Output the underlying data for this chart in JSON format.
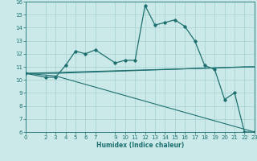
{
  "xlabel": "Humidex (Indice chaleur)",
  "xlim": [
    0,
    23
  ],
  "ylim": [
    6,
    16
  ],
  "xticks": [
    0,
    2,
    3,
    4,
    5,
    6,
    7,
    9,
    10,
    11,
    12,
    13,
    14,
    15,
    16,
    17,
    18,
    19,
    20,
    21,
    22,
    23
  ],
  "yticks": [
    6,
    7,
    8,
    9,
    10,
    11,
    12,
    13,
    14,
    15,
    16
  ],
  "bg_color": "#cce9e9",
  "grid_color": "#aad4d4",
  "line_color": "#1e7070",
  "line1_x": [
    0,
    2,
    3,
    4,
    5,
    6,
    7,
    9,
    10,
    11,
    12,
    13,
    14,
    15,
    16,
    17,
    18,
    19,
    20,
    21,
    22,
    23
  ],
  "line1_y": [
    10.5,
    10.2,
    10.2,
    11.1,
    12.2,
    12.0,
    12.3,
    11.3,
    11.5,
    11.5,
    15.7,
    14.2,
    14.4,
    14.6,
    14.1,
    13.0,
    11.1,
    10.8,
    8.5,
    9.0,
    6.0,
    6.0
  ],
  "line2_x": [
    0,
    2,
    3,
    22,
    23
  ],
  "line2_y": [
    10.5,
    10.5,
    10.5,
    11.0,
    11.0
  ],
  "line3_x": [
    0,
    3,
    23
  ],
  "line3_y": [
    10.5,
    10.3,
    6.0
  ],
  "line4_x": [
    0,
    23
  ],
  "line4_y": [
    10.5,
    11.0
  ]
}
